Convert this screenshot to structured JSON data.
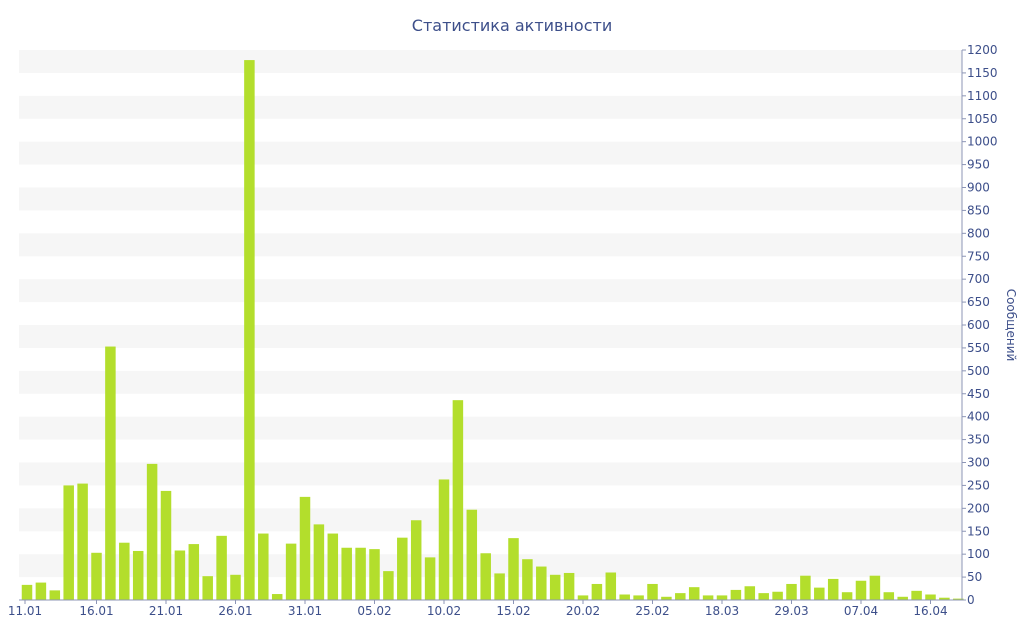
{
  "chart_data": {
    "type": "bar",
    "title": "Статистика активности",
    "xlabel": "",
    "ylabel": "Сообщений",
    "ylim": [
      0,
      1200
    ],
    "y_axis_position": "right",
    "y_ticks": [
      0,
      50,
      100,
      150,
      200,
      250,
      300,
      350,
      400,
      450,
      500,
      550,
      600,
      650,
      700,
      750,
      800,
      850,
      900,
      950,
      1000,
      1050,
      1100,
      1150,
      1200
    ],
    "x_tick_labels": [
      {
        "index": 0,
        "label": "11.01"
      },
      {
        "index": 5,
        "label": "16.01"
      },
      {
        "index": 10,
        "label": "21.01"
      },
      {
        "index": 15,
        "label": "26.01"
      },
      {
        "index": 20,
        "label": "31.01"
      },
      {
        "index": 25,
        "label": "05.02"
      },
      {
        "index": 30,
        "label": "10.02"
      },
      {
        "index": 35,
        "label": "15.02"
      },
      {
        "index": 40,
        "label": "20.02"
      },
      {
        "index": 45,
        "label": "25.02"
      },
      {
        "index": 50,
        "label": "18.03"
      },
      {
        "index": 55,
        "label": "29.03"
      },
      {
        "index": 60,
        "label": "07.04"
      },
      {
        "index": 65,
        "label": "16.04"
      }
    ],
    "series": [
      {
        "values": [
          33,
          38,
          21,
          250,
          254,
          103,
          553,
          125,
          107,
          297,
          238,
          108,
          122,
          52,
          140,
          55,
          1178,
          145,
          13,
          123,
          225,
          165,
          145,
          114,
          114,
          111,
          63,
          136,
          174,
          93,
          263,
          436,
          197,
          102,
          58,
          135,
          89,
          73,
          55,
          59,
          10,
          35,
          60,
          12,
          10,
          35,
          7,
          15,
          28,
          10,
          10,
          22,
          30,
          15,
          18,
          35,
          53,
          27,
          46,
          17,
          42,
          53,
          17,
          7,
          20,
          12,
          5,
          3
        ],
        "color": "#b3de2c"
      }
    ],
    "grid": "alternating horizontal bands",
    "band_color": "#f6f6f6",
    "text_color": "#3d4f8a",
    "axis_color": "#8c95b6"
  }
}
